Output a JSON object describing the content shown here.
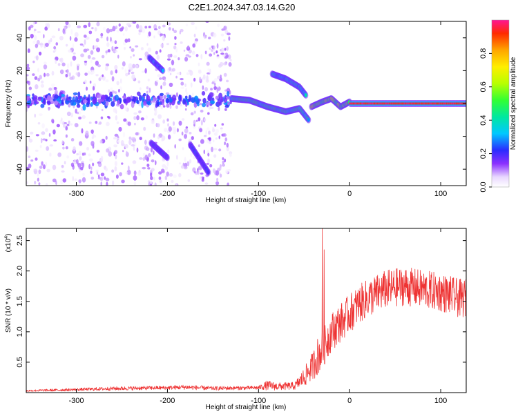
{
  "figure_title": "C2E1.2024.347.03.14.G20",
  "colors": {
    "snr_line": "#ee3333",
    "axis": "#000000",
    "background": "#ffffff"
  },
  "chart_data": [
    {
      "type": "heatmap",
      "title": "C2E1.2024.347.03.14.G20",
      "xlabel": "Height of straight line (km)",
      "ylabel": "Frequency (Hz)",
      "xlim": [
        -355,
        128
      ],
      "ylim": [
        -50,
        50
      ],
      "x_ticks": [
        -300,
        -200,
        -100,
        0,
        100
      ],
      "y_ticks": [
        -40,
        -20,
        0,
        20,
        40
      ],
      "colorbar": {
        "label": "Normalized spectral amplitude",
        "range": [
          0,
          1
        ],
        "ticks": [
          "0.0",
          "0.2",
          "0.4",
          "0.6",
          "0.8"
        ],
        "tick_values": [
          0.0,
          0.2,
          0.4,
          0.6,
          0.8
        ],
        "colormap": "rainbow"
      },
      "features": [
        {
          "name": "scattered noise region",
          "x_range": [
            -355,
            -130
          ],
          "y_range": [
            -50,
            50
          ],
          "amplitude": 0.05
        },
        {
          "name": "main carrier noisy segment",
          "x_range": [
            -355,
            -130
          ],
          "frequency_hz": 2,
          "amplitude": 0.15
        },
        {
          "name": "upper sideband streak",
          "x": [
            -220,
            -205
          ],
          "frequency_hz": [
            28,
            20
          ],
          "amplitude": 0.25
        },
        {
          "name": "lower sideband streak",
          "x": [
            -218,
            -200
          ],
          "frequency_hz": [
            -24,
            -33
          ],
          "amplitude": 0.2
        },
        {
          "name": "descending streak",
          "x": [
            -175,
            -155
          ],
          "frequency_hz": [
            -25,
            -42
          ],
          "amplitude": 0.2
        },
        {
          "name": "carrier track",
          "x": [
            -130,
            -110,
            -90,
            -70,
            -55,
            -45
          ],
          "frequency_hz": [
            3,
            2,
            -2,
            -5,
            -3,
            -10
          ],
          "amplitude": 0.4
        },
        {
          "name": "upper curved arm",
          "x": [
            -85,
            -70,
            -55,
            -48
          ],
          "frequency_hz": [
            18,
            15,
            10,
            5
          ],
          "amplitude": 0.35
        },
        {
          "name": "stabilizing carrier",
          "x": [
            -42,
            -30,
            -20,
            -10,
            0
          ],
          "frequency_hz": [
            -2,
            1,
            3,
            -2,
            1
          ],
          "amplitude": 0.55
        },
        {
          "name": "steady carrier",
          "x": [
            0,
            128
          ],
          "frequency_hz": [
            0,
            0
          ],
          "amplitude": 0.95
        }
      ]
    },
    {
      "type": "line",
      "title": "",
      "xlabel": "Height of straight line (km)",
      "ylabel": "SNR (10 * v/v)",
      "y_scale_label": "(x10",
      "y_scale_exponent": "4",
      "xlim": [
        -355,
        128
      ],
      "ylim": [
        0,
        2.7
      ],
      "x_ticks": [
        -300,
        -200,
        -100,
        0,
        100
      ],
      "y_ticks": [
        0.5,
        1.0,
        1.5,
        2.0,
        2.5
      ],
      "y_tick_labels": [
        "0.5",
        "1.0",
        "1.5",
        "2.0",
        "2.5"
      ],
      "grid": false,
      "series": [
        {
          "x": [
            -355,
            -300,
            -250,
            -200,
            -180,
            -150,
            -100,
            -90,
            -80,
            -60,
            -50,
            -40,
            -35,
            -30,
            -25,
            -20,
            -10,
            0,
            10,
            20,
            40,
            60,
            80,
            100,
            110,
            120,
            128
          ],
          "mean": [
            0.03,
            0.05,
            0.07,
            0.08,
            0.09,
            0.07,
            0.08,
            0.12,
            0.1,
            0.11,
            0.25,
            0.45,
            0.6,
            0.7,
            0.85,
            1.0,
            1.15,
            1.3,
            1.45,
            1.55,
            1.7,
            1.75,
            1.7,
            1.65,
            1.6,
            1.55,
            1.55
          ],
          "noise": [
            0.01,
            0.015,
            0.02,
            0.02,
            0.025,
            0.02,
            0.02,
            0.05,
            0.04,
            0.04,
            0.1,
            0.15,
            0.2,
            0.2,
            0.2,
            0.2,
            0.2,
            0.2,
            0.2,
            0.2,
            0.2,
            0.2,
            0.2,
            0.2,
            0.2,
            0.2,
            0.2
          ],
          "spikes": [
            [
              -30,
              2.7
            ],
            [
              -28,
              2.35
            ]
          ]
        }
      ]
    }
  ]
}
